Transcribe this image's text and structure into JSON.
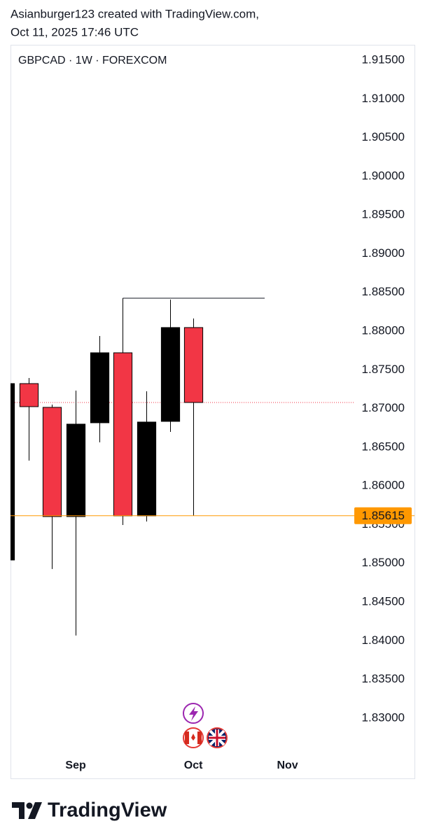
{
  "header": {
    "line1": "Asianburger123 created with TradingView.com,",
    "line2": "Oct 11, 2025 17:46 UTC"
  },
  "chart_data": {
    "type": "candlestick",
    "title": "GBPCAD · 1W · FOREXCOM",
    "x": [
      0,
      1,
      2,
      3,
      4,
      5,
      6,
      7,
      8
    ],
    "open": [
      1.85043,
      1.87322,
      1.87015,
      1.85604,
      1.86816,
      1.8772,
      1.85613,
      1.86834,
      1.88046
    ],
    "high": [
      1.87322,
      1.87394,
      1.87051,
      1.87232,
      1.87937,
      1.88425,
      1.87223,
      1.88407,
      1.88163
    ],
    "low": [
      1.85043,
      1.86327,
      1.84926,
      1.84067,
      1.86563,
      1.85495,
      1.8554,
      1.86698,
      1.85613
    ],
    "close": [
      1.87322,
      1.87024,
      1.85604,
      1.86798,
      1.8772,
      1.85613,
      1.86825,
      1.88046,
      1.87078
    ],
    "up_color": "#000000",
    "down_color": "#f23645",
    "xlim": [
      0.23,
      14.81
    ],
    "xticks": [
      {
        "value": 3,
        "label": "Sep"
      },
      {
        "value": 8,
        "label": "Oct"
      },
      {
        "value": 12,
        "label": "Nov"
      }
    ],
    "ylim": [
      1.82556,
      1.91699
    ],
    "yticks": [
      {
        "value": 1.915,
        "label": "1.91500"
      },
      {
        "value": 1.91,
        "label": "1.91000"
      },
      {
        "value": 1.905,
        "label": "1.90500"
      },
      {
        "value": 1.9,
        "label": "1.90000"
      },
      {
        "value": 1.895,
        "label": "1.89500"
      },
      {
        "value": 1.89,
        "label": "1.89000"
      },
      {
        "value": 1.885,
        "label": "1.88500"
      },
      {
        "value": 1.88,
        "label": "1.88000"
      },
      {
        "value": 1.875,
        "label": "1.87500"
      },
      {
        "value": 1.87,
        "label": "1.87000"
      },
      {
        "value": 1.865,
        "label": "1.86500"
      },
      {
        "value": 1.86,
        "label": "1.86000"
      },
      {
        "value": 1.855,
        "label": "1.85500"
      },
      {
        "value": 1.85,
        "label": "1.85000"
      },
      {
        "value": 1.845,
        "label": "1.84500"
      },
      {
        "value": 1.84,
        "label": "1.84000"
      },
      {
        "value": 1.835,
        "label": "1.83500"
      },
      {
        "value": 1.83,
        "label": "1.83000"
      }
    ],
    "grid": false,
    "last_price": 1.87078,
    "last_price_color": "#f23645",
    "ray": 1.88425,
    "ray_start_x": 5,
    "price_marker": 1.85615,
    "price_marker_color": "#ff9800"
  },
  "footer": {
    "brand": "TradingView"
  }
}
